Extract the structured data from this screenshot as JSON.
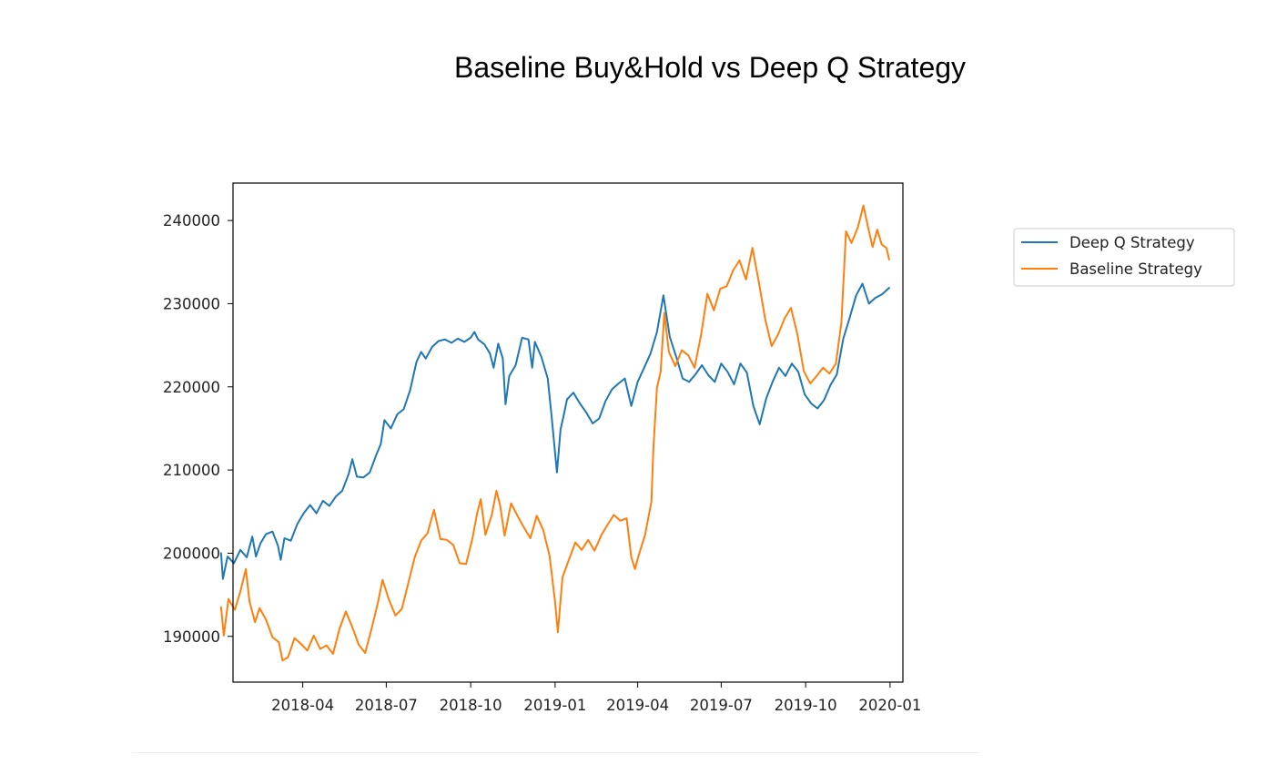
{
  "page_title": "Baseline Buy&Hold vs Deep Q Strategy",
  "colors": {
    "deep_q": "#1f77b4",
    "baseline": "#ff7f0e",
    "axes": "#000000"
  },
  "chart_data": {
    "type": "line",
    "title": "Baseline Buy&Hold vs Deep Q Strategy",
    "xlabel": "",
    "ylabel": "",
    "x_range": [
      "2018-01-15",
      "2020-01-15"
    ],
    "ylim": [
      184500,
      244500
    ],
    "yticks": [
      190000,
      200000,
      210000,
      220000,
      230000,
      240000
    ],
    "ytick_labels": [
      "190000",
      "200000",
      "210000",
      "220000",
      "230000",
      "240000"
    ],
    "xticks": [
      "2018-04-01",
      "2018-07-01",
      "2018-10-01",
      "2019-01-01",
      "2019-04-01",
      "2019-07-01",
      "2019-10-01",
      "2020-01-01"
    ],
    "xtick_labels": [
      "2018-04",
      "2018-07",
      "2018-10",
      "2019-01",
      "2019-04",
      "2019-07",
      "2019-10",
      "2020-01"
    ],
    "grid": false,
    "legend": {
      "position": "outside-right",
      "entries": [
        "Deep Q Strategy",
        "Baseline Strategy"
      ]
    },
    "series": [
      {
        "name": "Deep Q Strategy",
        "color": "#1f77b4",
        "points": [
          [
            "2018-01-02",
            200000
          ],
          [
            "2018-01-04",
            196900
          ],
          [
            "2018-01-09",
            199600
          ],
          [
            "2018-01-16",
            198800
          ],
          [
            "2018-01-23",
            200400
          ],
          [
            "2018-01-30",
            199500
          ],
          [
            "2018-02-05",
            202000
          ],
          [
            "2018-02-09",
            199600
          ],
          [
            "2018-02-14",
            201200
          ],
          [
            "2018-02-20",
            202300
          ],
          [
            "2018-02-27",
            202600
          ],
          [
            "2018-03-05",
            200900
          ],
          [
            "2018-03-08",
            199200
          ],
          [
            "2018-03-12",
            201800
          ],
          [
            "2018-03-19",
            201500
          ],
          [
            "2018-03-26",
            203500
          ],
          [
            "2018-04-02",
            204800
          ],
          [
            "2018-04-09",
            205800
          ],
          [
            "2018-04-16",
            204800
          ],
          [
            "2018-04-23",
            206300
          ],
          [
            "2018-04-30",
            205700
          ],
          [
            "2018-05-07",
            206800
          ],
          [
            "2018-05-14",
            207500
          ],
          [
            "2018-05-21",
            209500
          ],
          [
            "2018-05-25",
            211300
          ],
          [
            "2018-05-30",
            209200
          ],
          [
            "2018-06-06",
            209100
          ],
          [
            "2018-06-13",
            209700
          ],
          [
            "2018-06-20",
            211800
          ],
          [
            "2018-06-25",
            213100
          ],
          [
            "2018-06-29",
            216000
          ],
          [
            "2018-07-06",
            215000
          ],
          [
            "2018-07-13",
            216700
          ],
          [
            "2018-07-20",
            217300
          ],
          [
            "2018-07-27",
            219600
          ],
          [
            "2018-08-03",
            223000
          ],
          [
            "2018-08-08",
            224200
          ],
          [
            "2018-08-13",
            223400
          ],
          [
            "2018-08-20",
            224800
          ],
          [
            "2018-08-27",
            225500
          ],
          [
            "2018-09-03",
            225700
          ],
          [
            "2018-09-10",
            225300
          ],
          [
            "2018-09-17",
            225800
          ],
          [
            "2018-09-24",
            225400
          ],
          [
            "2018-10-01",
            225900
          ],
          [
            "2018-10-05",
            226600
          ],
          [
            "2018-10-09",
            225700
          ],
          [
            "2018-10-16",
            225100
          ],
          [
            "2018-10-22",
            224000
          ],
          [
            "2018-10-26",
            222300
          ],
          [
            "2018-10-31",
            225200
          ],
          [
            "2018-11-05",
            223400
          ],
          [
            "2018-11-08",
            217900
          ],
          [
            "2018-11-12",
            221300
          ],
          [
            "2018-11-19",
            222600
          ],
          [
            "2018-11-26",
            225900
          ],
          [
            "2018-12-03",
            225700
          ],
          [
            "2018-12-07",
            222300
          ],
          [
            "2018-12-10",
            225400
          ],
          [
            "2018-12-17",
            223600
          ],
          [
            "2018-12-24",
            221000
          ],
          [
            "2018-12-28",
            216600
          ],
          [
            "2019-01-03",
            209700
          ],
          [
            "2019-01-07",
            214900
          ],
          [
            "2019-01-10",
            216400
          ],
          [
            "2019-01-14",
            218500
          ],
          [
            "2019-01-21",
            219300
          ],
          [
            "2019-01-28",
            218000
          ],
          [
            "2019-02-04",
            216900
          ],
          [
            "2019-02-11",
            215600
          ],
          [
            "2019-02-18",
            216200
          ],
          [
            "2019-02-25",
            218300
          ],
          [
            "2019-03-04",
            219700
          ],
          [
            "2019-03-11",
            220400
          ],
          [
            "2019-03-18",
            221000
          ],
          [
            "2019-03-25",
            217700
          ],
          [
            "2019-04-01",
            220600
          ],
          [
            "2019-04-08",
            222300
          ],
          [
            "2019-04-15",
            224000
          ],
          [
            "2019-04-22",
            226600
          ],
          [
            "2019-04-29",
            231000
          ],
          [
            "2019-05-06",
            226000
          ],
          [
            "2019-05-13",
            223600
          ],
          [
            "2019-05-20",
            221000
          ],
          [
            "2019-05-27",
            220600
          ],
          [
            "2019-06-03",
            221500
          ],
          [
            "2019-06-10",
            222600
          ],
          [
            "2019-06-17",
            221400
          ],
          [
            "2019-06-24",
            220600
          ],
          [
            "2019-07-01",
            222800
          ],
          [
            "2019-07-08",
            221800
          ],
          [
            "2019-07-15",
            220300
          ],
          [
            "2019-07-22",
            222800
          ],
          [
            "2019-07-29",
            221700
          ],
          [
            "2019-08-05",
            217700
          ],
          [
            "2019-08-12",
            215500
          ],
          [
            "2019-08-19",
            218600
          ],
          [
            "2019-08-26",
            220600
          ],
          [
            "2019-09-02",
            222300
          ],
          [
            "2019-09-09",
            221300
          ],
          [
            "2019-09-16",
            222800
          ],
          [
            "2019-09-23",
            221800
          ],
          [
            "2019-09-30",
            219100
          ],
          [
            "2019-10-07",
            218000
          ],
          [
            "2019-10-14",
            217400
          ],
          [
            "2019-10-21",
            218400
          ],
          [
            "2019-10-28",
            220200
          ],
          [
            "2019-11-04",
            221500
          ],
          [
            "2019-11-11",
            225800
          ],
          [
            "2019-11-18",
            228300
          ],
          [
            "2019-11-25",
            231000
          ],
          [
            "2019-12-02",
            232400
          ],
          [
            "2019-12-09",
            230000
          ],
          [
            "2019-12-16",
            230700
          ],
          [
            "2019-12-23",
            231100
          ],
          [
            "2019-12-31",
            231900
          ]
        ]
      },
      {
        "name": "Baseline Strategy",
        "color": "#ff7f0e",
        "points": [
          [
            "2018-01-02",
            193500
          ],
          [
            "2018-01-05",
            190100
          ],
          [
            "2018-01-10",
            194500
          ],
          [
            "2018-01-17",
            193200
          ],
          [
            "2018-01-23",
            195400
          ],
          [
            "2018-01-29",
            198100
          ],
          [
            "2018-02-02",
            194200
          ],
          [
            "2018-02-08",
            191700
          ],
          [
            "2018-02-13",
            193400
          ],
          [
            "2018-02-20",
            192000
          ],
          [
            "2018-02-27",
            189900
          ],
          [
            "2018-03-06",
            189300
          ],
          [
            "2018-03-10",
            187100
          ],
          [
            "2018-03-16",
            187500
          ],
          [
            "2018-03-23",
            189800
          ],
          [
            "2018-03-30",
            189100
          ],
          [
            "2018-04-06",
            188300
          ],
          [
            "2018-04-13",
            190100
          ],
          [
            "2018-04-20",
            188500
          ],
          [
            "2018-04-27",
            188900
          ],
          [
            "2018-05-04",
            187900
          ],
          [
            "2018-05-11",
            190900
          ],
          [
            "2018-05-18",
            193000
          ],
          [
            "2018-05-25",
            191100
          ],
          [
            "2018-06-01",
            189000
          ],
          [
            "2018-06-08",
            188000
          ],
          [
            "2018-06-15",
            190900
          ],
          [
            "2018-06-22",
            194100
          ],
          [
            "2018-06-27",
            196800
          ],
          [
            "2018-07-04",
            194400
          ],
          [
            "2018-07-11",
            192500
          ],
          [
            "2018-07-18",
            193300
          ],
          [
            "2018-07-25",
            196400
          ],
          [
            "2018-08-01",
            199500
          ],
          [
            "2018-08-08",
            201500
          ],
          [
            "2018-08-15",
            202400
          ],
          [
            "2018-08-22",
            205200
          ],
          [
            "2018-08-29",
            201700
          ],
          [
            "2018-09-05",
            201600
          ],
          [
            "2018-09-12",
            201000
          ],
          [
            "2018-09-19",
            198800
          ],
          [
            "2018-09-26",
            198700
          ],
          [
            "2018-10-03",
            201800
          ],
          [
            "2018-10-08",
            204800
          ],
          [
            "2018-10-12",
            206500
          ],
          [
            "2018-10-17",
            202200
          ],
          [
            "2018-10-24",
            204600
          ],
          [
            "2018-10-29",
            207500
          ],
          [
            "2018-11-02",
            205800
          ],
          [
            "2018-11-07",
            202100
          ],
          [
            "2018-11-14",
            206000
          ],
          [
            "2018-11-21",
            204500
          ],
          [
            "2018-11-28",
            203100
          ],
          [
            "2018-12-05",
            201800
          ],
          [
            "2018-12-12",
            204500
          ],
          [
            "2018-12-19",
            202800
          ],
          [
            "2018-12-26",
            199700
          ],
          [
            "2019-01-01",
            194100
          ],
          [
            "2019-01-04",
            190500
          ],
          [
            "2019-01-09",
            197100
          ],
          [
            "2019-01-16",
            199200
          ],
          [
            "2019-01-23",
            201300
          ],
          [
            "2019-01-30",
            200400
          ],
          [
            "2019-02-06",
            201600
          ],
          [
            "2019-02-13",
            200300
          ],
          [
            "2019-02-20",
            202100
          ],
          [
            "2019-02-27",
            203400
          ],
          [
            "2019-03-06",
            204600
          ],
          [
            "2019-03-13",
            203900
          ],
          [
            "2019-03-20",
            204200
          ],
          [
            "2019-03-25",
            199500
          ],
          [
            "2019-03-29",
            198100
          ],
          [
            "2019-04-02",
            199700
          ],
          [
            "2019-04-09",
            202200
          ],
          [
            "2019-04-16",
            206200
          ],
          [
            "2019-04-18",
            212500
          ],
          [
            "2019-04-22",
            219900
          ],
          [
            "2019-04-26",
            221800
          ],
          [
            "2019-04-30",
            228900
          ],
          [
            "2019-05-05",
            224200
          ],
          [
            "2019-05-12",
            222500
          ],
          [
            "2019-05-19",
            224400
          ],
          [
            "2019-05-26",
            223800
          ],
          [
            "2019-06-02",
            222300
          ],
          [
            "2019-06-09",
            226200
          ],
          [
            "2019-06-16",
            231200
          ],
          [
            "2019-06-23",
            229200
          ],
          [
            "2019-06-30",
            231800
          ],
          [
            "2019-07-07",
            232100
          ],
          [
            "2019-07-14",
            234000
          ],
          [
            "2019-07-21",
            235200
          ],
          [
            "2019-07-28",
            232900
          ],
          [
            "2019-08-04",
            236700
          ],
          [
            "2019-08-11",
            232600
          ],
          [
            "2019-08-18",
            228100
          ],
          [
            "2019-08-25",
            224900
          ],
          [
            "2019-09-01",
            226300
          ],
          [
            "2019-09-08",
            228200
          ],
          [
            "2019-09-15",
            229500
          ],
          [
            "2019-09-22",
            226300
          ],
          [
            "2019-09-29",
            221900
          ],
          [
            "2019-10-06",
            220400
          ],
          [
            "2019-10-13",
            221300
          ],
          [
            "2019-10-20",
            222300
          ],
          [
            "2019-10-27",
            221600
          ],
          [
            "2019-11-03",
            222800
          ],
          [
            "2019-11-09",
            227700
          ],
          [
            "2019-11-14",
            238700
          ],
          [
            "2019-11-20",
            237300
          ],
          [
            "2019-11-27",
            239200
          ],
          [
            "2019-12-03",
            241800
          ],
          [
            "2019-12-08",
            239200
          ],
          [
            "2019-12-13",
            236800
          ],
          [
            "2019-12-18",
            238900
          ],
          [
            "2019-12-23",
            237100
          ],
          [
            "2019-12-28",
            236700
          ],
          [
            "2019-12-31",
            235300
          ]
        ]
      }
    ]
  }
}
